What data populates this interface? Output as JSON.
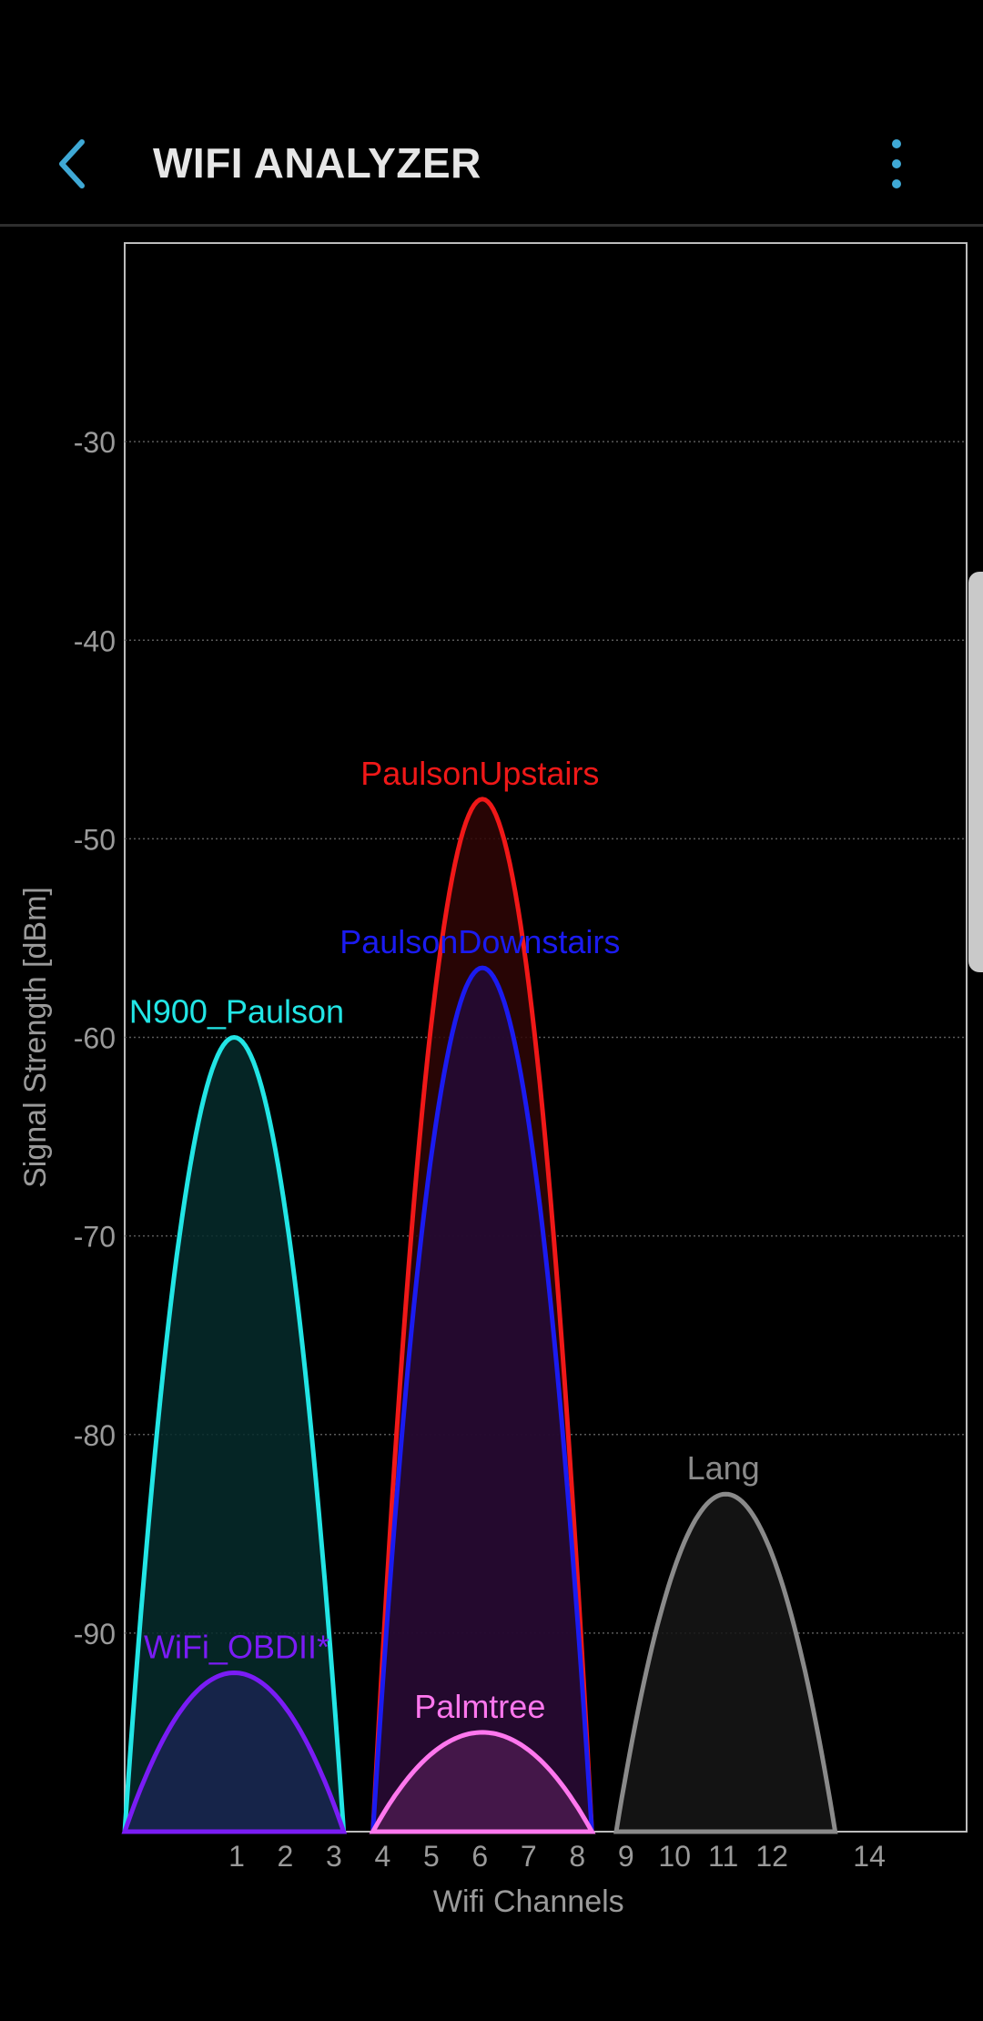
{
  "app": {
    "title": "WIFI ANALYZER",
    "back_icon": "chevron-left-icon",
    "menu_icon": "more-vertical-icon",
    "accent_color": "#3fa9d6"
  },
  "chart_data": {
    "type": "area",
    "xlabel": "Wifi Channels",
    "ylabel": "Signal Strength [dBm]",
    "ylim": [
      -100,
      -20
    ],
    "xlim": [
      -1.3,
      16.0
    ],
    "y_ticks": [
      -30,
      -40,
      -50,
      -60,
      -70,
      -80,
      -90
    ],
    "x_ticks": [
      "1",
      "2",
      "3",
      "4",
      "5",
      "6",
      "7",
      "8",
      "9",
      "10",
      "11",
      "12",
      "14"
    ],
    "grid": true,
    "series": [
      {
        "name": "N900_Paulson",
        "channel": 1,
        "span": [
          -1.3,
          3.2
        ],
        "peak": -60,
        "color": "#22e5e5",
        "fill": "#062c2c"
      },
      {
        "name": "WiFi_OBDII*",
        "channel": 1,
        "span": [
          -1.3,
          3.2
        ],
        "peak": -92,
        "color": "#7a1cf5",
        "fill": "#1a2450"
      },
      {
        "name": "PaulsonUpstairs",
        "channel": 6,
        "span": [
          3.8,
          8.3
        ],
        "peak": -48,
        "color": "#f01818",
        "fill": "#2f0606"
      },
      {
        "name": "PaulsonDownstairs",
        "channel": 6,
        "span": [
          3.8,
          8.3
        ],
        "peak": -56.5,
        "color": "#1b1bf0",
        "fill": "#230a36"
      },
      {
        "name": "Palmtree",
        "channel": 6,
        "span": [
          3.8,
          8.3
        ],
        "peak": -95,
        "color": "#ff77ee",
        "fill": "#4a1a4e"
      },
      {
        "name": "Lang",
        "channel": 11,
        "span": [
          8.8,
          13.3
        ],
        "peak": -83,
        "color": "#8a8a8a",
        "fill": "#161616"
      }
    ]
  }
}
